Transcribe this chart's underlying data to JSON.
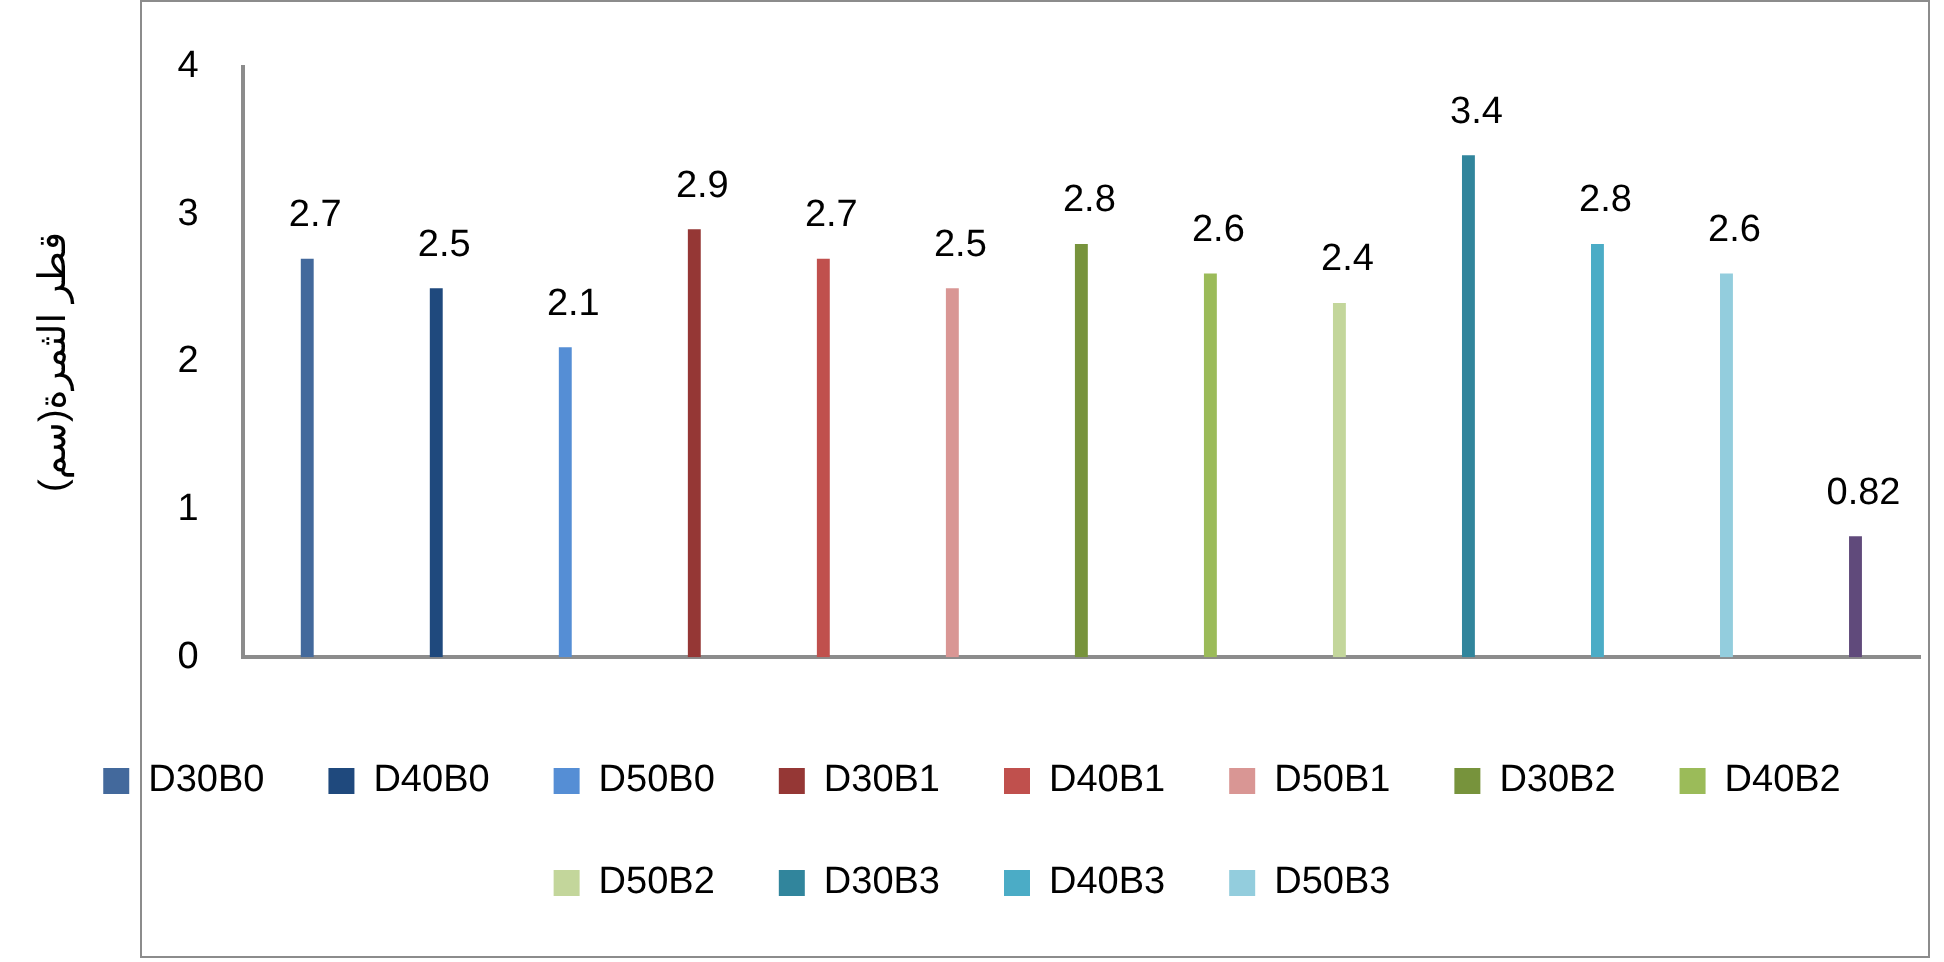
{
  "chart_data": {
    "type": "bar",
    "ylabel": "قطر الثمرة(سم)",
    "categories": [
      null
    ],
    "series": [
      {
        "name": "D30B0",
        "color": "#43699c",
        "values": [
          2.7
        ]
      },
      {
        "name": "D40B0",
        "color": "#1f497d",
        "values": [
          2.5
        ]
      },
      {
        "name": "D50B0",
        "color": "#558ed5",
        "values": [
          2.1
        ]
      },
      {
        "name": "D30B1",
        "color": "#953735",
        "values": [
          2.9
        ]
      },
      {
        "name": "D40B1",
        "color": "#c0504d",
        "values": [
          2.7
        ]
      },
      {
        "name": "D50B1",
        "color": "#d99694",
        "values": [
          2.5
        ]
      },
      {
        "name": "D30B2",
        "color": "#77933c",
        "values": [
          2.8
        ]
      },
      {
        "name": "D40B2",
        "color": "#9bbb59",
        "values": [
          2.6
        ]
      },
      {
        "name": "D50B2",
        "color": "#c3d69b",
        "values": [
          2.4
        ]
      },
      {
        "name": "D30B3",
        "color": "#31859c",
        "values": [
          3.4
        ]
      },
      {
        "name": "D40B3",
        "color": "#4bacc6",
        "values": [
          2.8
        ]
      },
      {
        "name": "D50B3",
        "color": "#93cddd",
        "values": [
          2.6
        ]
      },
      {
        "color": "#604a7b",
        "values": [
          0.82
        ]
      }
    ],
    "ylim": [
      0,
      4
    ],
    "yticks": [
      0,
      1,
      2,
      3,
      4
    ],
    "grid": false,
    "legend": "bottom",
    "data_labels": true
  }
}
